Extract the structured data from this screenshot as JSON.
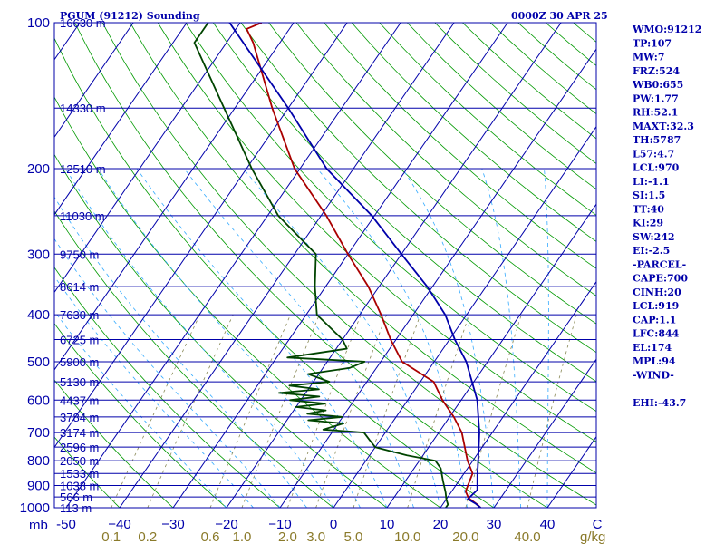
{
  "header": {
    "station": "PGUM (91212) Sounding",
    "time": "0000Z 30 APR 25"
  },
  "chart_data": {
    "type": "line",
    "chart_kind": "skew-T log-P sounding",
    "title": "PGUM (91212) Sounding",
    "subtitle": "0000Z 30 APR 25",
    "y_axis": {
      "label": "mb",
      "scale": "log",
      "range": [
        1000,
        100
      ],
      "tick_labels": [
        {
          "p": 100,
          "label": "100"
        },
        {
          "p": 200,
          "label": "200"
        },
        {
          "p": 300,
          "label": "300"
        },
        {
          "p": 400,
          "label": "400"
        },
        {
          "p": 500,
          "label": "500"
        },
        {
          "p": 600,
          "label": "600"
        },
        {
          "p": 700,
          "label": "700"
        },
        {
          "p": 800,
          "label": "800"
        },
        {
          "p": 900,
          "label": "900"
        },
        {
          "p": 1000,
          "label": "1000"
        }
      ]
    },
    "x_axis": {
      "unit": "C",
      "range": [
        -50,
        50
      ],
      "skewed": true,
      "tick_labels": [
        {
          "t": -50,
          "label": "-50"
        },
        {
          "t": -40,
          "label": "−40"
        },
        {
          "t": -30,
          "label": "−30"
        },
        {
          "t": -20,
          "label": "−20"
        },
        {
          "t": -10,
          "label": "−10"
        },
        {
          "t": 0,
          "label": "0"
        },
        {
          "t": 10,
          "label": "10"
        },
        {
          "t": 20,
          "label": "20"
        },
        {
          "t": 30,
          "label": "30"
        },
        {
          "t": 40,
          "label": "40"
        }
      ]
    },
    "mixing_ratio_axis": {
      "unit": "g/kg",
      "labels": [
        "0.1",
        "0.2",
        "0.6",
        "1.0",
        "2.0",
        "3.0",
        "5.0",
        "10.0",
        "20.0",
        "40.0"
      ]
    },
    "height_levels": [
      {
        "p": 100,
        "label": "16630 m"
      },
      {
        "p": 150,
        "label": "14330 m"
      },
      {
        "p": 200,
        "label": "12510 m"
      },
      {
        "p": 250,
        "label": "11030 m"
      },
      {
        "p": 300,
        "label": "9750 m"
      },
      {
        "p": 350,
        "label": "8614 m"
      },
      {
        "p": 400,
        "label": "7630 m"
      },
      {
        "p": 450,
        "label": "6725 m"
      },
      {
        "p": 500,
        "label": "5900 m"
      },
      {
        "p": 550,
        "label": "5130 m"
      },
      {
        "p": 600,
        "label": "4437 m"
      },
      {
        "p": 650,
        "label": "3784 m"
      },
      {
        "p": 700,
        "label": "3174 m"
      },
      {
        "p": 750,
        "label": "2596 m"
      },
      {
        "p": 800,
        "label": "2050 m"
      },
      {
        "p": 850,
        "label": "1533 m"
      },
      {
        "p": 900,
        "label": "1038 m"
      },
      {
        "p": 950,
        "label": "566 m"
      },
      {
        "p": 1000,
        "label": "113 m"
      }
    ],
    "series": [
      {
        "role": "temperature",
        "color": "#aa0000",
        "points": [
          [
            1000,
            27.5
          ],
          [
            985,
            26.5
          ],
          [
            955,
            24.0
          ],
          [
            925,
            22.6
          ],
          [
            850,
            21.6
          ],
          [
            800,
            19.0
          ],
          [
            700,
            14.3
          ],
          [
            650,
            10.8
          ],
          [
            600,
            6.5
          ],
          [
            550,
            2.5
          ],
          [
            500,
            -6.0
          ],
          [
            450,
            -11.0
          ],
          [
            400,
            -16.0
          ],
          [
            350,
            -22.0
          ],
          [
            300,
            -30.0
          ],
          [
            250,
            -39.0
          ],
          [
            200,
            -51.0
          ],
          [
            150,
            -63.0
          ],
          [
            110,
            -75.0
          ],
          [
            103,
            -78.0
          ],
          [
            100,
            -76.0
          ]
        ]
      },
      {
        "role": "dewpoint",
        "color": "#004400",
        "points": [
          [
            1000,
            21.0
          ],
          [
            985,
            21.0
          ],
          [
            960,
            20.0
          ],
          [
            930,
            19.0
          ],
          [
            880,
            17.0
          ],
          [
            830,
            15.0
          ],
          [
            800,
            13.0
          ],
          [
            780,
            7.0
          ],
          [
            750,
            0.0
          ],
          [
            725,
            -2.0
          ],
          [
            700,
            -4.0
          ],
          [
            690,
            -12.0
          ],
          [
            670,
            -9.0
          ],
          [
            660,
            -16.0
          ],
          [
            650,
            -10.0
          ],
          [
            640,
            -17.0
          ],
          [
            630,
            -14.0
          ],
          [
            620,
            -20.0
          ],
          [
            610,
            -15.0
          ],
          [
            600,
            -22.0
          ],
          [
            590,
            -17.0
          ],
          [
            580,
            -25.0
          ],
          [
            570,
            -18.0
          ],
          [
            560,
            -24.0
          ],
          [
            550,
            -17.0
          ],
          [
            530,
            -22.0
          ],
          [
            515,
            -15.0
          ],
          [
            500,
            -13.0
          ],
          [
            490,
            -28.0
          ],
          [
            470,
            -18.0
          ],
          [
            450,
            -20.0
          ],
          [
            400,
            -28.0
          ],
          [
            350,
            -32.0
          ],
          [
            300,
            -36.0
          ],
          [
            250,
            -48.0
          ],
          [
            200,
            -59.0
          ],
          [
            150,
            -72.0
          ],
          [
            110,
            -86.0
          ],
          [
            100,
            -86.0
          ]
        ]
      },
      {
        "role": "parcel",
        "color": "#0000aa",
        "points": [
          [
            1000,
            27.5
          ],
          [
            980,
            26.0
          ],
          [
            960,
            24.0
          ],
          [
            919,
            24.6
          ],
          [
            850,
            22.5
          ],
          [
            800,
            21.0
          ],
          [
            700,
            17.6
          ],
          [
            600,
            13.0
          ],
          [
            500,
            6.0
          ],
          [
            450,
            1.0
          ],
          [
            400,
            -4.0
          ],
          [
            350,
            -11.0
          ],
          [
            300,
            -20.0
          ],
          [
            250,
            -30.5
          ],
          [
            200,
            -45.0
          ],
          [
            150,
            -60.0
          ],
          [
            100,
            -82.0
          ]
        ]
      }
    ]
  },
  "indices": [
    "WMO:91212",
    "TP:107",
    "MW:7",
    "FRZ:524",
    "WB0:655",
    "PW:1.77",
    "RH:52.1",
    "MAXT:32.3",
    "TH:5787",
    "L57:4.7",
    "LCL:970",
    "LI:-1.1",
    "SI:1.5",
    "TT:40",
    "KI:29",
    "SW:242",
    "EI:-2.5",
    "-PARCEL-",
    "CAPE:700",
    "CINH:20",
    "LCL:919",
    "CAP:1.1",
    "LFC:844",
    "EL:174",
    "MPL:94",
    "-WIND-",
    "",
    "EHI:-43.7"
  ],
  "colors": {
    "frame": "#0000aa",
    "isobar": "#0000aa",
    "isotherm": "#0000aa",
    "dry_adiabat": "#009900",
    "moist_adiabat": "#33aaff",
    "mixing_ratio": "#888855",
    "mixing_label": "#8a7a2a"
  }
}
